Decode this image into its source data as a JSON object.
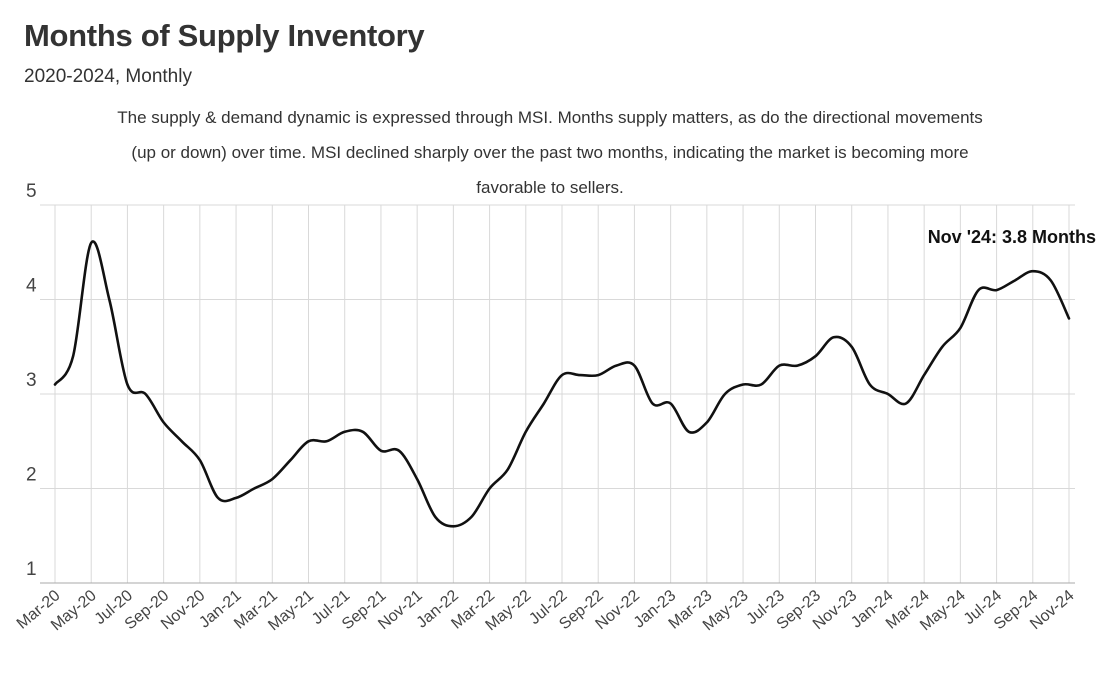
{
  "title": "Months of Supply Inventory",
  "subtitle": "2020-2024, Monthly",
  "description": "The supply & demand dynamic is expressed through MSI. Months supply matters, as do the directional movements (up or down) over time. MSI declined sharply over the past two months, indicating the market is becoming more favorable to sellers.",
  "colors": {
    "line": "#111111",
    "grid": "#d9d9d9",
    "axis": "#aaaaaa"
  },
  "chart_data": {
    "type": "line",
    "title": "Months of Supply Inventory",
    "subtitle": "2020-2024, Monthly",
    "xlabel": "",
    "ylabel": "",
    "ylim": [
      1,
      5
    ],
    "yticks": [
      1,
      2,
      3,
      4,
      5
    ],
    "grid": true,
    "legend": "none",
    "x": [
      "Mar-20",
      "Apr-20",
      "May-20",
      "Jun-20",
      "Jul-20",
      "Aug-20",
      "Sep-20",
      "Oct-20",
      "Nov-20",
      "Dec-20",
      "Jan-21",
      "Feb-21",
      "Mar-21",
      "Apr-21",
      "May-21",
      "Jun-21",
      "Jul-21",
      "Aug-21",
      "Sep-21",
      "Oct-21",
      "Nov-21",
      "Dec-21",
      "Jan-22",
      "Feb-22",
      "Mar-22",
      "Apr-22",
      "May-22",
      "Jun-22",
      "Jul-22",
      "Aug-22",
      "Sep-22",
      "Oct-22",
      "Nov-22",
      "Dec-22",
      "Jan-23",
      "Feb-23",
      "Mar-23",
      "Apr-23",
      "May-23",
      "Jun-23",
      "Jul-23",
      "Aug-23",
      "Sep-23",
      "Oct-23",
      "Nov-23",
      "Dec-23",
      "Jan-24",
      "Feb-24",
      "Mar-24",
      "Apr-24",
      "May-24",
      "Jun-24",
      "Jul-24",
      "Aug-24",
      "Sep-24",
      "Oct-24",
      "Nov-24"
    ],
    "xtick_labels": [
      "Mar-20",
      "May-20",
      "Jul-20",
      "Sep-20",
      "Nov-20",
      "Jan-21",
      "Mar-21",
      "May-21",
      "Jul-21",
      "Sep-21",
      "Nov-21",
      "Jan-22",
      "Mar-22",
      "May-22",
      "Jul-22",
      "Sep-22",
      "Nov-22",
      "Jan-23",
      "Mar-23",
      "May-23",
      "Jul-23",
      "Sep-23",
      "Nov-23",
      "Jan-24",
      "Mar-24",
      "May-24",
      "Jul-24",
      "Sep-24",
      "Nov-24"
    ],
    "series": [
      {
        "values": [
          3.1,
          3.4,
          4.6,
          4.0,
          3.1,
          3.0,
          2.7,
          2.5,
          2.3,
          1.9,
          1.9,
          2.0,
          2.1,
          2.3,
          2.5,
          2.5,
          2.6,
          2.6,
          2.4,
          2.4,
          2.1,
          1.7,
          1.6,
          1.7,
          2.0,
          2.2,
          2.6,
          2.9,
          3.2,
          3.2,
          3.2,
          3.3,
          3.3,
          2.9,
          2.9,
          2.6,
          2.7,
          3.0,
          3.1,
          3.1,
          3.3,
          3.3,
          3.4,
          3.6,
          3.5,
          3.1,
          3.0,
          2.9,
          3.2,
          3.5,
          3.7,
          4.1,
          4.1,
          4.2,
          4.3,
          4.2,
          3.8
        ]
      }
    ],
    "annotation": {
      "text": "Nov '24: 3.8 Months",
      "x": "Nov-24",
      "y": 3.8
    }
  }
}
